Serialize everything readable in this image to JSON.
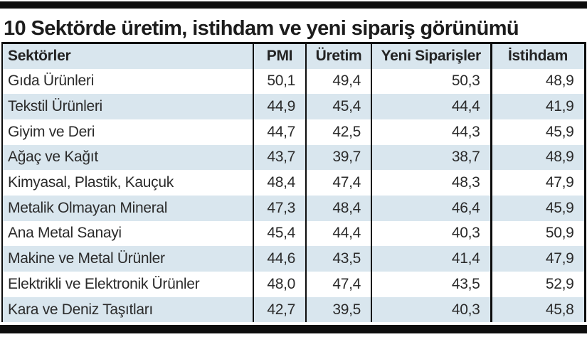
{
  "title": "10 Sektörde üretim, istihdam ve yeni sipariş görünümü",
  "colors": {
    "row_alt": "#d9e6ee",
    "rule_black": "#0d0d0d",
    "text": "#2b2b2b"
  },
  "table": {
    "columns": [
      "Sektörler",
      "PMI",
      "Üretim",
      "Yeni Siparişler",
      "İstihdam"
    ],
    "rows": [
      [
        "Gıda Ürünleri",
        "50,1",
        "49,4",
        "50,3",
        "48,9"
      ],
      [
        "Tekstil Ürünleri",
        "44,9",
        "45,4",
        "44,4",
        "41,9"
      ],
      [
        "Giyim ve Deri",
        "44,7",
        "42,5",
        "44,3",
        "45,9"
      ],
      [
        "Ağaç ve Kağıt",
        "43,7",
        "39,7",
        "38,7",
        "48,9"
      ],
      [
        "Kimyasal, Plastik, Kauçuk",
        "48,4",
        "47,4",
        "48,3",
        "47,9"
      ],
      [
        "Metalik Olmayan Mineral",
        "47,3",
        "48,4",
        "46,4",
        "45,9"
      ],
      [
        "Ana Metal Sanayi",
        "45,4",
        "44,4",
        "40,3",
        "50,9"
      ],
      [
        "Makine ve Metal Ürünler",
        "44,6",
        "43,5",
        "41,4",
        "47,9"
      ],
      [
        "Elektrikli ve Elektronik Ürünler",
        "48,0",
        "47,4",
        "43,5",
        "52,9"
      ],
      [
        "Kara ve Deniz Taşıtları",
        "42,7",
        "39,5",
        "40,3",
        "45,8"
      ]
    ]
  },
  "chart_data": {
    "type": "table",
    "title": "10 Sektörde üretim, istihdam ve yeni sipariş görünümü",
    "categories": [
      "Gıda Ürünleri",
      "Tekstil Ürünleri",
      "Giyim ve Deri",
      "Ağaç ve Kağıt",
      "Kimyasal, Plastik, Kauçuk",
      "Metalik Olmayan Mineral",
      "Ana Metal Sanayi",
      "Makine ve Metal Ürünler",
      "Elektrikli ve Elektronik Ürünler",
      "Kara ve Deniz Taşıtları"
    ],
    "series": [
      {
        "name": "PMI",
        "values": [
          50.1,
          44.9,
          44.7,
          43.7,
          48.4,
          47.3,
          45.4,
          44.6,
          48.0,
          42.7
        ]
      },
      {
        "name": "Üretim",
        "values": [
          49.4,
          45.4,
          42.5,
          39.7,
          47.4,
          48.4,
          44.4,
          43.5,
          47.4,
          39.5
        ]
      },
      {
        "name": "Yeni Siparişler",
        "values": [
          50.3,
          44.4,
          44.3,
          38.7,
          48.3,
          46.4,
          40.3,
          41.4,
          43.5,
          40.3
        ]
      },
      {
        "name": "İstihdam",
        "values": [
          48.9,
          41.9,
          45.9,
          48.9,
          47.9,
          45.9,
          50.9,
          47.9,
          52.9,
          45.8
        ]
      }
    ],
    "decimal_separator": ",",
    "layout": "alternating row shading, black column rules, thick black rules above title and below table"
  }
}
